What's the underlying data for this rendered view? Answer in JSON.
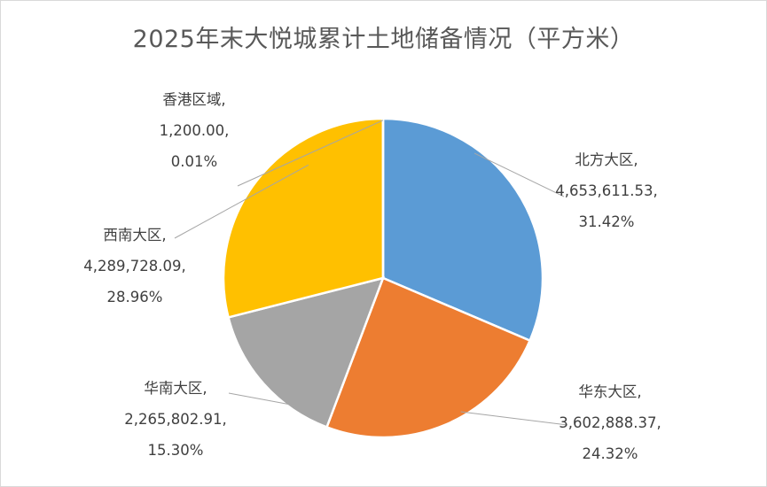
{
  "chart_data": {
    "type": "pie",
    "title": "2025年末大悦城累计土地储备情况（平方米）",
    "slices": [
      {
        "name": "北方大区",
        "value_text": "4,653,611.53",
        "pct_text": "31.42%",
        "value": 4653611.53,
        "pct": 31.42,
        "color": "#5B9BD5"
      },
      {
        "name": "华东大区",
        "value_text": "3,602,888.37",
        "pct_text": "24.32%",
        "value": 3602888.37,
        "pct": 24.32,
        "color": "#ED7D31"
      },
      {
        "name": "华南大区",
        "value_text": "2,265,802.91",
        "pct_text": "15.30%",
        "value": 2265802.91,
        "pct": 15.3,
        "color": "#A5A5A5"
      },
      {
        "name": "西南大区",
        "value_text": "4,289,728.09",
        "pct_text": "28.96%",
        "value": 4289728.09,
        "pct": 28.96,
        "color": "#FFC000"
      },
      {
        "name": "香港区域",
        "value_text": "1,200.00",
        "pct_text": "0.01%",
        "value": 1200.0,
        "pct": 0.01,
        "color": "#4472C4"
      }
    ],
    "start_angle": "12 o'clock",
    "direction": "clockwise",
    "legend": "none",
    "data_labels": "category name, value, percentage"
  }
}
